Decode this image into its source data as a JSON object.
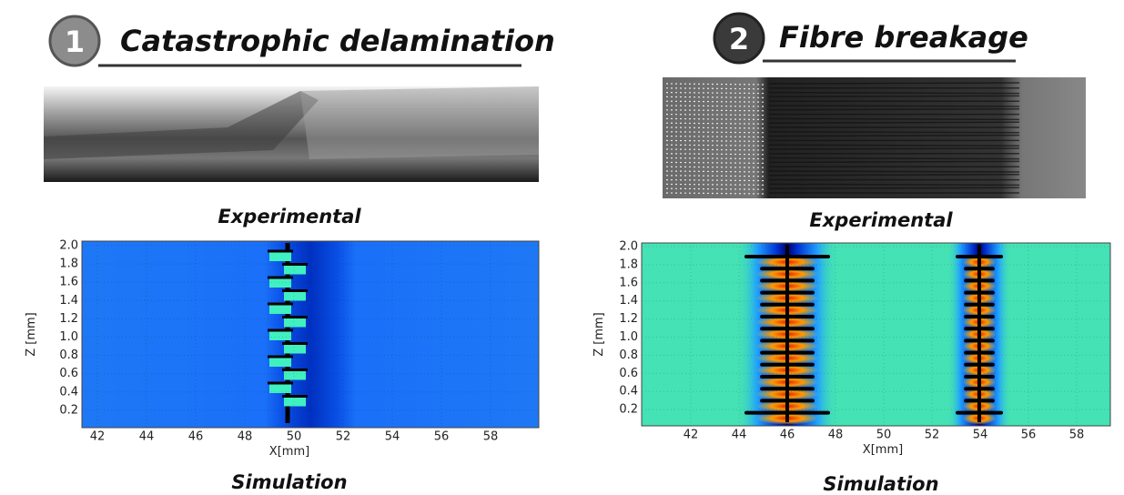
{
  "panels": [
    {
      "number": "1",
      "title": "Catastrophic delamination",
      "photo_caption": "Experimental",
      "plot": {
        "y_label": "Z [mm]",
        "x_label": "X[mm]",
        "y_ticks": [
          "2.0",
          "1.8",
          "1.6",
          "1.4",
          "1.2",
          "1.0",
          "0.8",
          "0.6",
          "0.4",
          "0.2"
        ],
        "x_ticks": [
          "42",
          "44",
          "46",
          "48",
          "50",
          "52",
          "54",
          "56",
          "58"
        ]
      },
      "plot_caption": "Simulation"
    },
    {
      "number": "2",
      "title": "Fibre breakage",
      "photo_caption": "Experimental",
      "plot": {
        "y_label": "Z [mm]",
        "x_label": "X[mm]",
        "y_ticks": [
          "2.0",
          "1.8",
          "1.6",
          "1.4",
          "1.2",
          "1.0",
          "0.8",
          "0.6",
          "0.4",
          "0.2"
        ],
        "x_ticks": [
          "42",
          "44",
          "46",
          "48",
          "50",
          "52",
          "54",
          "56",
          "58"
        ]
      },
      "plot_caption": "Simulation"
    }
  ]
}
